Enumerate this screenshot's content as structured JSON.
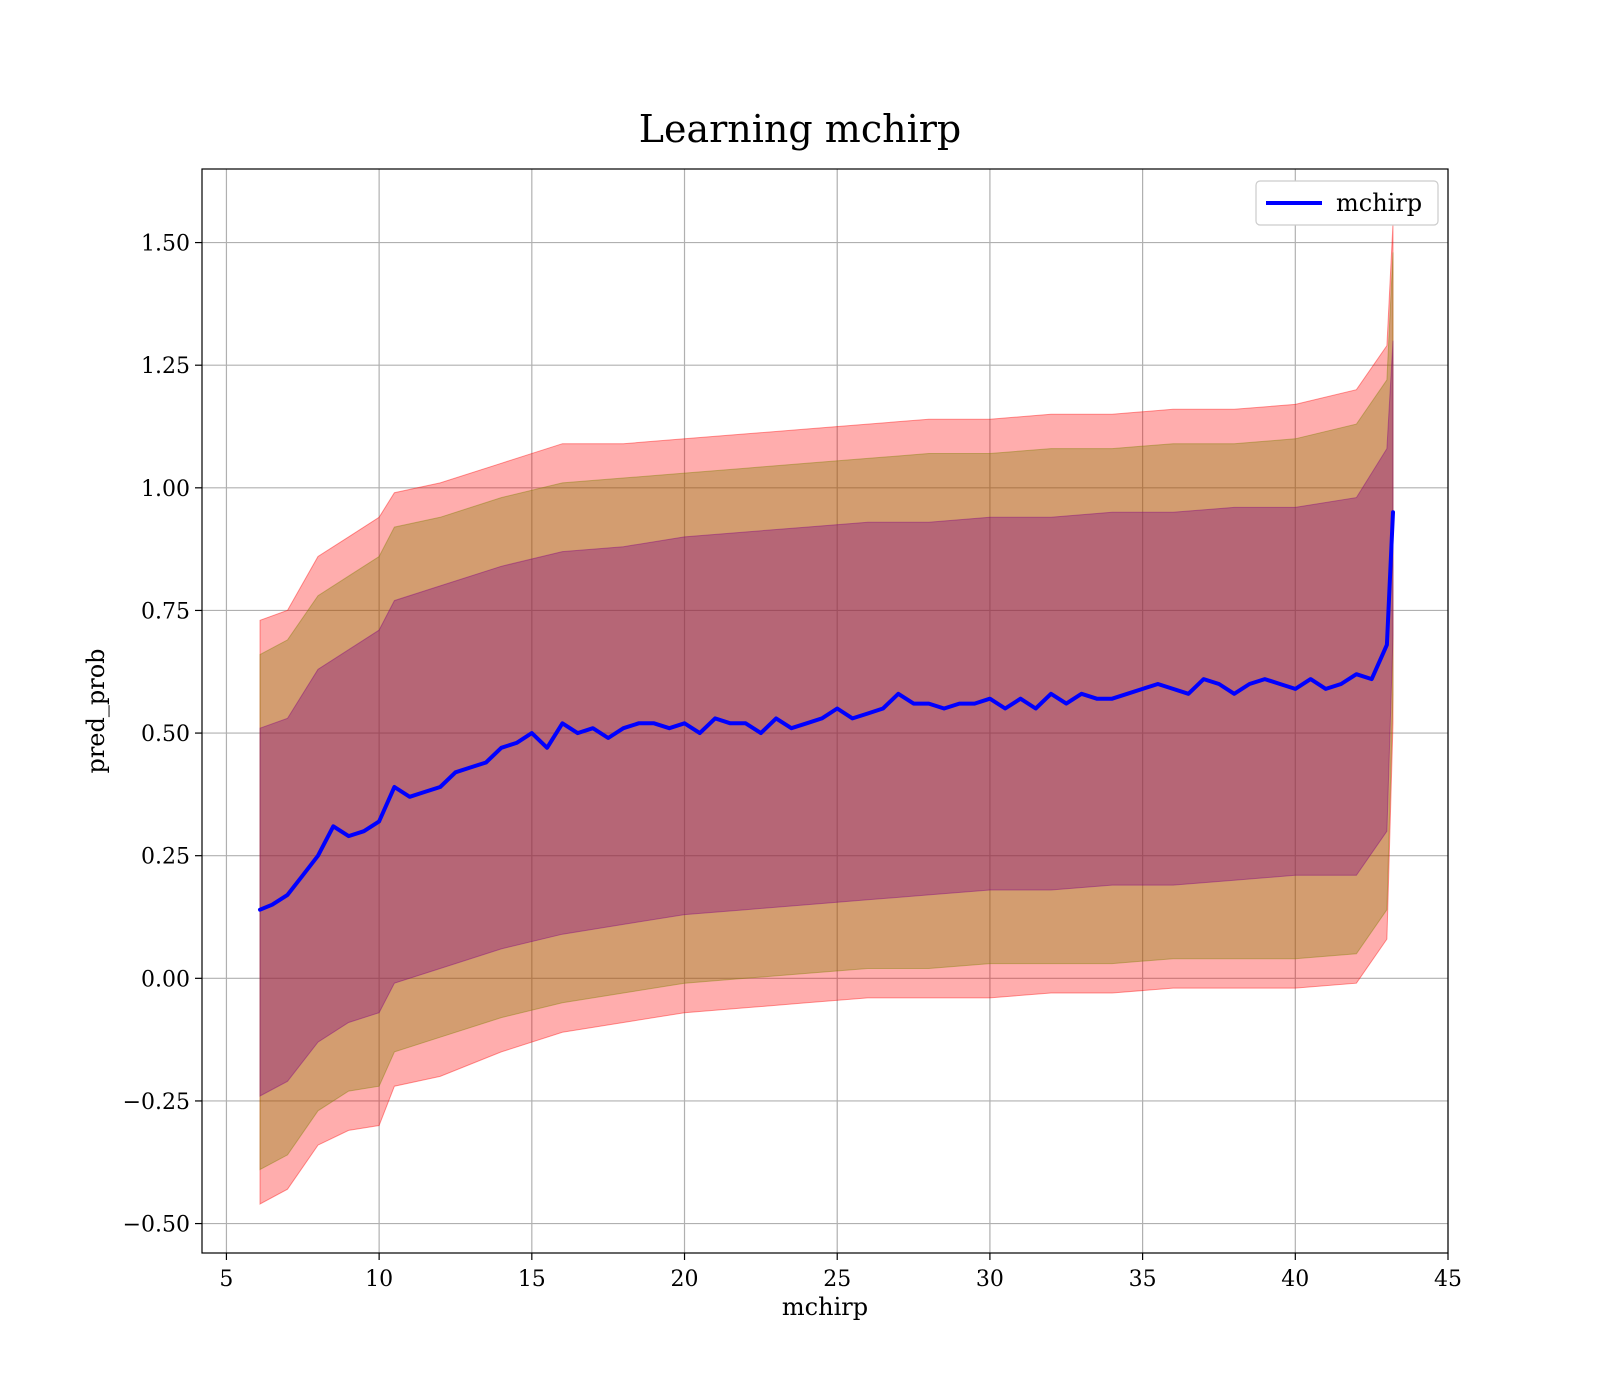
{
  "chart_data": {
    "type": "line",
    "title": "Learning mchirp",
    "xlabel": "mchirp",
    "ylabel": "pred_prob",
    "xlim": [
      4.2,
      45.0
    ],
    "ylim": [
      -0.56,
      1.65
    ],
    "xticks": [
      5,
      10,
      15,
      20,
      25,
      30,
      35,
      40,
      45
    ],
    "xtick_labels": [
      "5",
      "10",
      "15",
      "20",
      "25",
      "30",
      "35",
      "40",
      "45"
    ],
    "yticks": [
      -0.5,
      -0.25,
      0.0,
      0.25,
      0.5,
      0.75,
      1.0,
      1.25,
      1.5
    ],
    "ytick_labels": [
      "−0.50",
      "−0.25",
      "0.00",
      "0.25",
      "0.50",
      "0.75",
      "1.00",
      "1.25",
      "1.50"
    ],
    "grid": true,
    "legend": {
      "position": "top-right",
      "entries": [
        "mchirp"
      ]
    },
    "series": [
      {
        "name": "mchirp",
        "color": "#0000ff",
        "x": [
          6.1,
          6.5,
          7.0,
          7.5,
          8.0,
          8.5,
          9.0,
          9.5,
          10.0,
          10.5,
          11.0,
          11.5,
          12.0,
          12.5,
          13.0,
          13.5,
          14.0,
          14.5,
          15.0,
          15.5,
          16.0,
          16.5,
          17.0,
          17.5,
          18.0,
          18.5,
          19.0,
          19.5,
          20.0,
          20.5,
          21.0,
          21.5,
          22.0,
          22.5,
          23.0,
          23.5,
          24.0,
          24.5,
          25.0,
          25.5,
          26.0,
          26.5,
          27.0,
          27.5,
          28.0,
          28.5,
          29.0,
          29.5,
          30.0,
          30.5,
          31.0,
          31.5,
          32.0,
          32.5,
          33.0,
          33.5,
          34.0,
          34.5,
          35.0,
          35.5,
          36.0,
          36.5,
          37.0,
          37.5,
          38.0,
          38.5,
          39.0,
          39.5,
          40.0,
          40.5,
          41.0,
          41.5,
          42.0,
          42.5,
          43.0,
          43.2
        ],
        "values": [
          0.14,
          0.15,
          0.17,
          0.21,
          0.25,
          0.31,
          0.29,
          0.3,
          0.32,
          0.39,
          0.37,
          0.38,
          0.39,
          0.42,
          0.43,
          0.44,
          0.47,
          0.48,
          0.5,
          0.47,
          0.52,
          0.5,
          0.51,
          0.49,
          0.51,
          0.52,
          0.52,
          0.51,
          0.52,
          0.5,
          0.53,
          0.52,
          0.52,
          0.5,
          0.53,
          0.51,
          0.52,
          0.53,
          0.55,
          0.53,
          0.54,
          0.55,
          0.58,
          0.56,
          0.56,
          0.55,
          0.56,
          0.56,
          0.57,
          0.55,
          0.57,
          0.55,
          0.58,
          0.56,
          0.58,
          0.57,
          0.57,
          0.58,
          0.59,
          0.6,
          0.59,
          0.58,
          0.61,
          0.6,
          0.58,
          0.6,
          0.61,
          0.6,
          0.59,
          0.61,
          0.59,
          0.6,
          0.62,
          0.61,
          0.68,
          0.95
        ]
      }
    ],
    "bands": [
      {
        "color": "#ff0000",
        "opacity": 0.32,
        "x": [
          6.1,
          7.0,
          8.0,
          9.0,
          10.0,
          10.5,
          12.0,
          14.0,
          16.0,
          18.0,
          20.0,
          22.0,
          24.0,
          26.0,
          28.0,
          30.0,
          32.0,
          34.0,
          36.0,
          38.0,
          40.0,
          42.0,
          43.0,
          43.2
        ],
        "lower": [
          -0.46,
          -0.43,
          -0.34,
          -0.31,
          -0.3,
          -0.22,
          -0.2,
          -0.15,
          -0.11,
          -0.09,
          -0.07,
          -0.06,
          -0.05,
          -0.04,
          -0.04,
          -0.04,
          -0.03,
          -0.03,
          -0.02,
          -0.02,
          -0.02,
          -0.01,
          0.08,
          0.52
        ],
        "upper": [
          0.73,
          0.75,
          0.86,
          0.9,
          0.94,
          0.99,
          1.01,
          1.05,
          1.09,
          1.09,
          1.1,
          1.11,
          1.12,
          1.13,
          1.14,
          1.14,
          1.15,
          1.15,
          1.16,
          1.16,
          1.17,
          1.2,
          1.29,
          1.54
        ]
      },
      {
        "color": "#808000",
        "opacity": 0.35,
        "x": [
          6.1,
          7.0,
          8.0,
          9.0,
          10.0,
          10.5,
          12.0,
          14.0,
          16.0,
          18.0,
          20.0,
          22.0,
          24.0,
          26.0,
          28.0,
          30.0,
          32.0,
          34.0,
          36.0,
          38.0,
          40.0,
          42.0,
          43.0,
          43.2
        ],
        "lower": [
          -0.39,
          -0.36,
          -0.27,
          -0.23,
          -0.22,
          -0.15,
          -0.12,
          -0.08,
          -0.05,
          -0.03,
          -0.01,
          0.0,
          0.01,
          0.02,
          0.02,
          0.03,
          0.03,
          0.03,
          0.04,
          0.04,
          0.04,
          0.05,
          0.14,
          0.58
        ],
        "upper": [
          0.66,
          0.69,
          0.78,
          0.82,
          0.86,
          0.92,
          0.94,
          0.98,
          1.01,
          1.02,
          1.03,
          1.04,
          1.05,
          1.06,
          1.07,
          1.07,
          1.08,
          1.08,
          1.09,
          1.09,
          1.1,
          1.13,
          1.22,
          1.48
        ]
      },
      {
        "color": "#800080",
        "opacity": 0.35,
        "x": [
          6.1,
          7.0,
          8.0,
          9.0,
          10.0,
          10.5,
          12.0,
          14.0,
          16.0,
          18.0,
          20.0,
          22.0,
          24.0,
          26.0,
          28.0,
          30.0,
          32.0,
          34.0,
          36.0,
          38.0,
          40.0,
          42.0,
          43.0,
          43.2
        ],
        "lower": [
          -0.24,
          -0.21,
          -0.13,
          -0.09,
          -0.07,
          -0.01,
          0.02,
          0.06,
          0.09,
          0.11,
          0.13,
          0.14,
          0.15,
          0.16,
          0.17,
          0.18,
          0.18,
          0.19,
          0.19,
          0.2,
          0.21,
          0.21,
          0.3,
          0.7
        ],
        "upper": [
          0.51,
          0.53,
          0.63,
          0.67,
          0.71,
          0.77,
          0.8,
          0.84,
          0.87,
          0.88,
          0.9,
          0.91,
          0.92,
          0.93,
          0.93,
          0.94,
          0.94,
          0.95,
          0.95,
          0.96,
          0.96,
          0.98,
          1.08,
          1.3
        ]
      }
    ]
  }
}
